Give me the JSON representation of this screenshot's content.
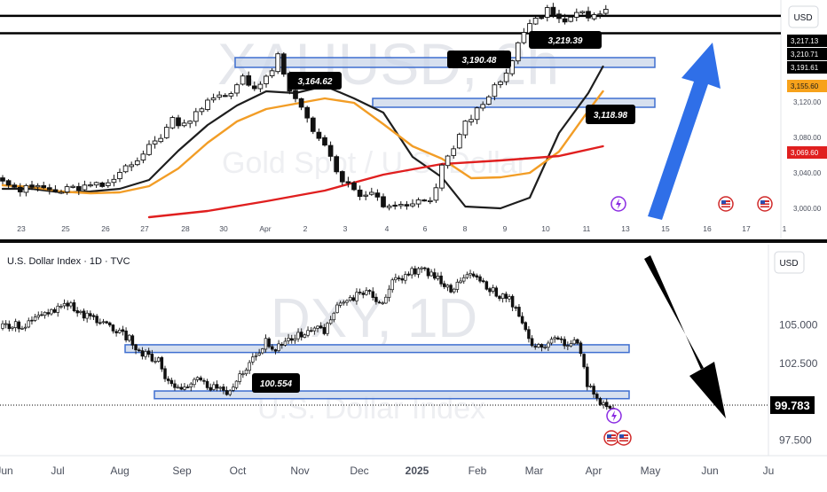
{
  "chart_data": [
    {
      "type": "candlestick",
      "symbol_watermark": "XAUUSD, 2h",
      "subtitle_watermark": "Gold Spot / U.S. Dollar",
      "currency": "USD",
      "x_ticks": [
        "23",
        "25",
        "26",
        "27",
        "28",
        "30",
        "Apr",
        "2",
        "3",
        "4",
        "6",
        "8",
        "9",
        "10",
        "11",
        "13",
        "15",
        "16",
        "17",
        "1"
      ],
      "y_ticks": [
        "3,120.00",
        "3,080.00",
        "3,040.00",
        "3,000.00"
      ],
      "ylim": [
        2985,
        3235
      ],
      "price_tags": [
        {
          "label": "3,217.13",
          "value": 3217.13,
          "style": "black"
        },
        {
          "label": "3,210.71",
          "value": 3210.71,
          "style": "black"
        },
        {
          "label": "3,191.61",
          "value": 3191.61,
          "style": "black"
        },
        {
          "label": "3,155.60",
          "value": 3155.6,
          "style": "orange"
        },
        {
          "label": "3,069.60",
          "value": 3069.6,
          "style": "red"
        }
      ],
      "horizontal_lines": [
        3217.13,
        3197.5
      ],
      "zones": [
        [
          3159,
          3170
        ],
        [
          3114,
          3124
        ]
      ],
      "callouts": [
        {
          "label": "3,219.39",
          "value": 3219.39
        },
        {
          "label": "3,190.48",
          "value": 3190.48
        },
        {
          "label": "3,164.62",
          "value": 3164.62
        },
        {
          "label": "3,118.98",
          "value": 3118.98
        }
      ],
      "series": [
        {
          "name": "",
          "color": "#1e1e1e",
          "kind": "moving-average",
          "x": [
            0,
            5,
            10,
            15,
            20,
            25,
            30,
            35,
            40,
            45,
            50,
            55,
            60,
            65,
            70,
            75,
            79,
            85,
            90,
            95,
            100,
            102.5
          ],
          "y": [
            3022,
            3022,
            3018,
            3019,
            3022,
            3032,
            3065,
            3094,
            3116,
            3132,
            3130,
            3138,
            3124,
            3108,
            3058,
            3035,
            3002,
            3000,
            3012,
            3085,
            3130,
            3160
          ]
        },
        {
          "name": "",
          "color": "#f29d26",
          "kind": "moving-average",
          "x": [
            0,
            5,
            10,
            15,
            20,
            25,
            30,
            35,
            40,
            45,
            50,
            55,
            60,
            65,
            70,
            75,
            80,
            85,
            90,
            95,
            100,
            102.5
          ],
          "y": [
            3026,
            3024,
            3019,
            3017,
            3018,
            3025,
            3045,
            3074,
            3098,
            3112,
            3118,
            3124,
            3119,
            3095,
            3070,
            3056,
            3034,
            3035,
            3040,
            3064,
            3110,
            3132
          ]
        },
        {
          "name": "",
          "color": "#e01f1f",
          "kind": "moving-average",
          "x": [
            25,
            35,
            45,
            55,
            65,
            75,
            85,
            95,
            102.5
          ],
          "y": [
            2990,
            2997,
            3008,
            3020,
            3038,
            3050,
            3054,
            3059,
            3070
          ]
        },
        {
          "name": "",
          "color": "#0d0d0d",
          "kind": "price-candles",
          "x": [
            0,
            3,
            6,
            9,
            12,
            15,
            18,
            21,
            24,
            27,
            29,
            31,
            33,
            35,
            37,
            39,
            41,
            43,
            45,
            47,
            49,
            51,
            53,
            55,
            57,
            59,
            61,
            63,
            65,
            67,
            69,
            71,
            73,
            75,
            77,
            79,
            81,
            83,
            85,
            87,
            89,
            91,
            93,
            95,
            97,
            99,
            101,
            103
          ],
          "y": [
            3035,
            3020,
            3025,
            3018,
            3022,
            3025,
            3025,
            3048,
            3062,
            3082,
            3100,
            3095,
            3110,
            3120,
            3125,
            3130,
            3150,
            3135,
            3145,
            3170,
            3130,
            3115,
            3090,
            3070,
            3040,
            3025,
            3010,
            3020,
            3000,
            3005,
            3000,
            3008,
            3005,
            3045,
            3070,
            3095,
            3110,
            3130,
            3140,
            3165,
            3200,
            3212,
            3225,
            3213,
            3216,
            3218,
            3220,
            3221
          ]
        }
      ],
      "annotations": [
        "event-icon-lightning",
        "event-icon-us-flag",
        "event-icon-us-flag"
      ],
      "arrow": "blue-up"
    },
    {
      "type": "candlestick",
      "title": "U.S. Dollar Index · 1D · TVC",
      "symbol_watermark": "DXY, 1D",
      "subtitle_watermark": "U.S. Dollar Index",
      "currency": "USD",
      "x_ticks": [
        "Jun",
        "Jul",
        "Aug",
        "Sep",
        "Oct",
        "Nov",
        "Dec",
        "2025",
        "Feb",
        "Mar",
        "Apr",
        "May",
        "Jun",
        "Ju"
      ],
      "y_ticks": [
        "105.000",
        "102.500",
        "97.500"
      ],
      "ylim": [
        96.5,
        110.2
      ],
      "last_price": {
        "label": "99.783",
        "value": 99.783
      },
      "zones": [
        [
          103.2,
          103.7
        ],
        [
          100.2,
          100.7
        ]
      ],
      "callouts": [
        {
          "label": "100.554",
          "value": 100.554
        }
      ],
      "series": [
        {
          "name": "",
          "color": "#0d0d0d",
          "kind": "price-candles",
          "x": [
            0,
            3,
            6,
            9,
            12,
            15,
            18,
            21,
            24,
            27,
            30,
            33,
            36,
            39,
            42,
            45,
            48,
            51,
            54,
            57,
            60,
            63,
            66,
            69,
            72,
            75,
            78,
            81,
            84,
            87,
            90,
            93,
            96,
            99,
            102,
            105,
            108,
            111,
            114,
            117,
            120,
            123,
            126,
            129,
            132,
            135,
            138,
            141,
            144,
            147,
            150,
            153,
            156,
            159,
            162,
            165,
            168,
            171,
            174,
            177,
            180,
            183,
            186,
            189
          ],
          "y": [
            104.8,
            105.1,
            104.9,
            105.3,
            105.5,
            105.8,
            106.1,
            106.2,
            105.8,
            105.4,
            105.2,
            105.0,
            104.4,
            104.1,
            103.2,
            102.9,
            102.6,
            101.2,
            100.7,
            101.1,
            101.5,
            101.0,
            100.9,
            100.6,
            101.3,
            102.2,
            103.0,
            104.0,
            103.5,
            103.7,
            104.3,
            104.1,
            105.0,
            104.4,
            106.0,
            106.3,
            106.8,
            107.2,
            106.9,
            106.5,
            107.7,
            108.1,
            108.5,
            108.6,
            108.3,
            107.9,
            107.3,
            107.9,
            108.2,
            107.8,
            107.4,
            106.8,
            106.6,
            105.8,
            104.0,
            103.6,
            103.7,
            104.2,
            103.6,
            103.9,
            101.2,
            100.2,
            99.8,
            99.2
          ]
        }
      ],
      "annotations": [
        "event-icon-lightning",
        "event-icon-us-flag"
      ],
      "arrow": "black-down"
    }
  ]
}
